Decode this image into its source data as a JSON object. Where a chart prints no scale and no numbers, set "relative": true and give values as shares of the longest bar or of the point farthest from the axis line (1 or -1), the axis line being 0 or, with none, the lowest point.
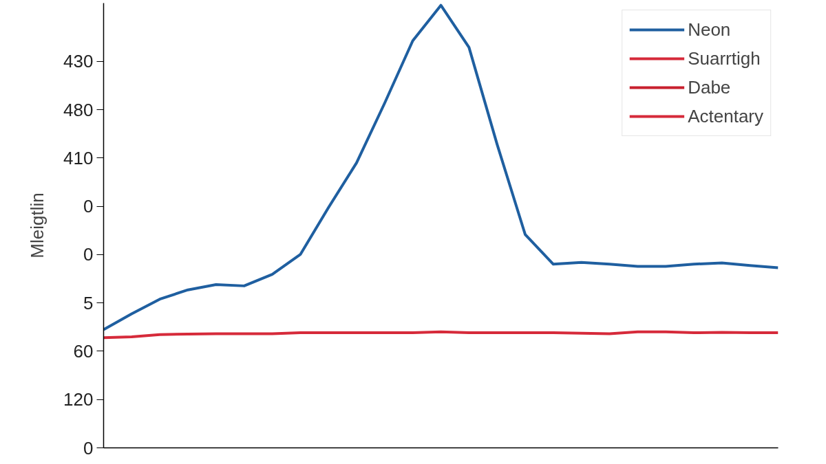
{
  "chart_data": {
    "type": "line",
    "relative": true,
    "ylabel": "Mleigtlin",
    "annotations": [
      "430",
      "480",
      "410",
      "0",
      "0",
      "5",
      "60",
      "120",
      "0"
    ],
    "categories": [
      null,
      null,
      null,
      null,
      null,
      null,
      null,
      null,
      null,
      null,
      null,
      null,
      null,
      null,
      null,
      null,
      null,
      null,
      null,
      null,
      null,
      null,
      null,
      null,
      null
    ],
    "legend": "top right",
    "line_style": "solid",
    "marker": "none",
    "series": [
      {
        "name": "Neon",
        "color": "#1f5fa0",
        "values": [
          0.267,
          0.303,
          0.336,
          0.357,
          0.369,
          0.366,
          0.392,
          0.437,
          0.543,
          0.644,
          0.779,
          0.92,
          1,
          0.905,
          0.686,
          0.482,
          0.415,
          0.419,
          0.415,
          0.41,
          0.41,
          0.415,
          0.418,
          0.412,
          0.407
        ]
      },
      {
        "name": "Suarrtigh",
        "color": "#d62a3a",
        "values": [
          0.249,
          0.251,
          0.256,
          0.257,
          0.258,
          0.258,
          0.258,
          0.26,
          0.26,
          0.26,
          0.26,
          0.26,
          0.262,
          0.26,
          0.26,
          0.26,
          0.26,
          0.259,
          0.258,
          0.262,
          0.262,
          0.26,
          0.261,
          0.26,
          0.26
        ]
      },
      {
        "name": "Dabe",
        "color": "#c8202e",
        "values": [
          null,
          null,
          null,
          null,
          null,
          null,
          null,
          null,
          null,
          null,
          null,
          null,
          null,
          null,
          null,
          null,
          null,
          null,
          null,
          null,
          null,
          null,
          null,
          null,
          null
        ]
      },
      {
        "name": "Actentary",
        "color": "#d62a3a",
        "values": [
          null,
          null,
          null,
          null,
          null,
          null,
          null,
          null,
          null,
          null,
          null,
          null,
          null,
          null,
          null,
          null,
          null,
          null,
          null,
          null,
          null,
          null,
          null,
          null,
          null
        ]
      }
    ]
  }
}
